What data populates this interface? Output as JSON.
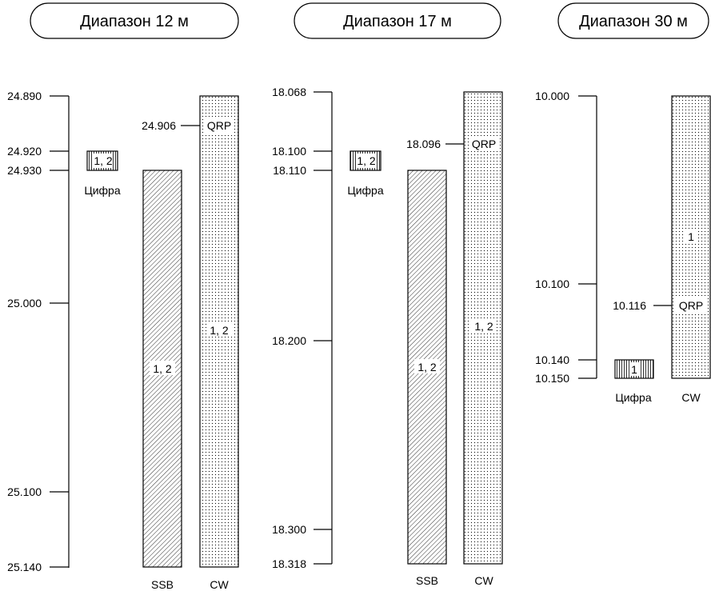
{
  "panels": [
    {
      "title": "Диапазон 12 м",
      "ticks": [
        "24.890",
        "24.920",
        "24.930",
        "25.000",
        "25.100",
        "25.140"
      ],
      "digital": {
        "label": "Цифра",
        "regions": "1, 2"
      },
      "ssb": {
        "label": "SSB",
        "regions": "1, 2"
      },
      "cw": {
        "label": "CW",
        "regions": "1, 2",
        "qrp_label": "QRP",
        "qrp_freq": "24.906"
      }
    },
    {
      "title": "Диапазон 17 м",
      "ticks": [
        "18.068",
        "18.100",
        "18.110",
        "18.200",
        "18.300",
        "18.318"
      ],
      "digital": {
        "label": "Цифра",
        "regions": "1, 2"
      },
      "ssb": {
        "label": "SSB",
        "regions": "1, 2"
      },
      "cw": {
        "label": "CW",
        "regions": "1, 2",
        "qrp_label": "QRP",
        "qrp_freq": "18.096"
      }
    },
    {
      "title": "Диапазон 30 м",
      "ticks": [
        "10.000",
        "10.100",
        "10.140",
        "10.150"
      ],
      "digital": {
        "label": "Цифра",
        "regions": "1"
      },
      "cw": {
        "label": "CW",
        "regions": "1",
        "qrp_label": "QRP",
        "qrp_freq": "10.116"
      }
    }
  ]
}
